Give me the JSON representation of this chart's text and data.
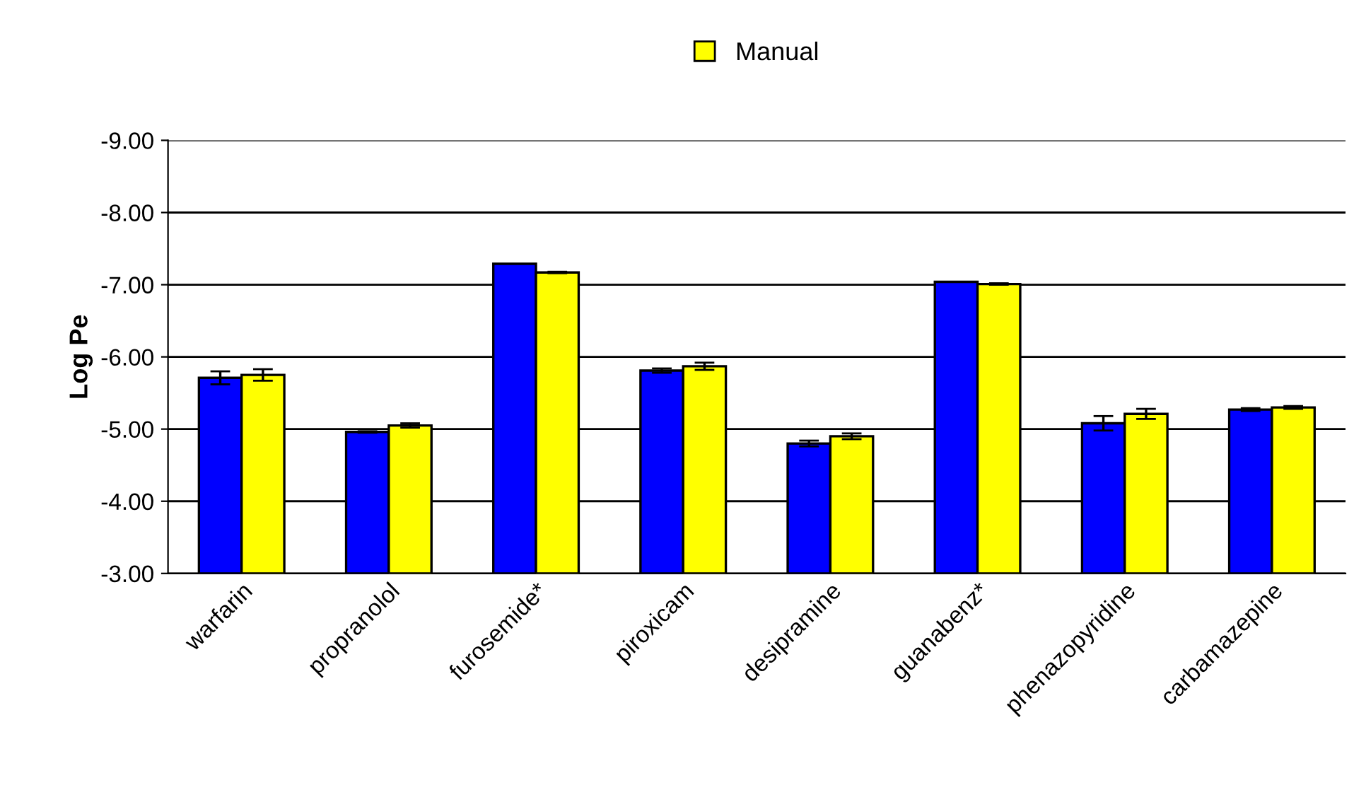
{
  "chart_data": {
    "type": "bar",
    "ylabel": "Log Pe",
    "categories": [
      "warfarin",
      "propranolol",
      "furosemide*",
      "piroxicam",
      "desipramine",
      "guanabenz*",
      "phenazopyridine",
      "carbamazepine"
    ],
    "series": [
      {
        "color": "#0000ff",
        "values": [
          -5.71,
          -4.96,
          -7.29,
          -5.81,
          -4.8,
          -7.04,
          -5.08,
          -5.27
        ],
        "errors": [
          0.09,
          0.01,
          null,
          0.03,
          0.04,
          null,
          0.1,
          0.02
        ]
      },
      {
        "name": "Manual",
        "color": "#ffff00",
        "values": [
          -5.75,
          -5.05,
          -7.17,
          -5.87,
          -4.9,
          -7.01,
          -5.21,
          -5.3
        ],
        "errors": [
          0.08,
          0.03,
          0.01,
          0.05,
          0.04,
          0.01,
          0.07,
          0.02
        ]
      }
    ],
    "ylim": [
      -3,
      -9
    ],
    "yticks": [
      {
        "value": -9,
        "label": "-9.00"
      },
      {
        "value": -8,
        "label": "-8.00"
      },
      {
        "value": -7,
        "label": "-7.00"
      },
      {
        "value": -6,
        "label": "-6.00"
      },
      {
        "value": -5,
        "label": "-5.00"
      },
      {
        "value": -4,
        "label": "-4.00"
      },
      {
        "value": -3,
        "label": "-3.00"
      }
    ],
    "grid": "y",
    "legend": "top"
  }
}
